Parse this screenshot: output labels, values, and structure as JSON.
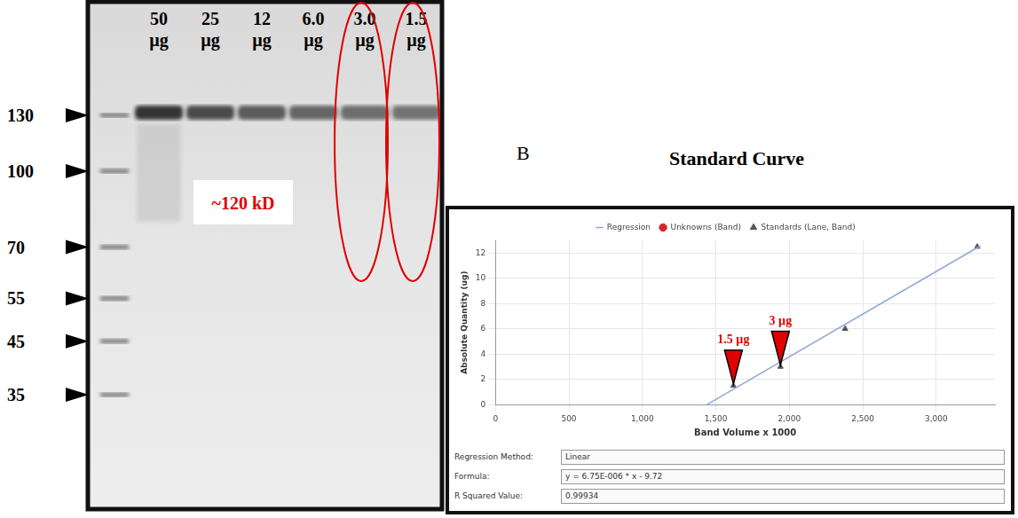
{
  "panel_a": {
    "markers": [
      130,
      100,
      70,
      55,
      45,
      35
    ],
    "lanes": [
      {
        "amount": "50",
        "unit": "µg",
        "circled": false
      },
      {
        "amount": "25",
        "unit": "µg",
        "circled": false
      },
      {
        "amount": "12",
        "unit": "µg",
        "circled": false
      },
      {
        "amount": "6.0",
        "unit": "µg",
        "circled": false
      },
      {
        "amount": "3.0",
        "unit": "µg",
        "circled": true
      },
      {
        "amount": "1.5",
        "unit": "µg",
        "circled": true
      }
    ],
    "band_label": "~120 kD"
  },
  "panel_b": {
    "label": "B",
    "fit_info": [
      {
        "label": "Regression Method:",
        "value": "Linear"
      },
      {
        "label": "Formula:",
        "value": "y = 6.75E-006 * x - 9.72"
      },
      {
        "label": "R Squared Value:",
        "value": "0.99934"
      }
    ]
  },
  "chart_data": {
    "type": "scatter",
    "title": "Standard Curve",
    "x_label": "Band Volume x 1000",
    "y_label": "Absolute Quantity (ug)",
    "xlim": [
      0,
      3400
    ],
    "ylim": [
      0,
      13
    ],
    "xticks": [
      0,
      500,
      {
        "value": 1000,
        "label": "1,000"
      },
      {
        "value": 1500,
        "label": "1,500"
      },
      {
        "value": 2000,
        "label": "2,000"
      },
      {
        "value": 2500,
        "label": "2,500"
      },
      {
        "value": 3000,
        "label": "3,000"
      }
    ],
    "yticks": [
      0,
      2,
      4,
      6,
      8,
      10,
      12
    ],
    "grid": true,
    "legend": "top",
    "series": [
      {
        "name": "Regression",
        "type": "line",
        "color": "#8fa8d8",
        "line_style": "solid",
        "marker": "none",
        "x": [
          1440,
          3300
        ],
        "values": [
          0,
          12.56
        ]
      },
      {
        "name": "Unknowns (Band)",
        "type": "scatter",
        "color": "#d62728",
        "marker": "circle",
        "x": [],
        "values": []
      },
      {
        "name": "Standards (Lane, Band)",
        "type": "scatter",
        "color": "#555555",
        "marker": "triangle",
        "x": [
          1620,
          1940,
          2380,
          3280
        ],
        "values": [
          1.5,
          3,
          6,
          12.5
        ]
      }
    ],
    "annotations": [
      {
        "text": "1.5 µg",
        "x": 1620,
        "y": 1.5,
        "color": "#e00000"
      },
      {
        "text": "3 µg",
        "x": 1940,
        "y": 3,
        "color": "#e00000"
      }
    ]
  }
}
